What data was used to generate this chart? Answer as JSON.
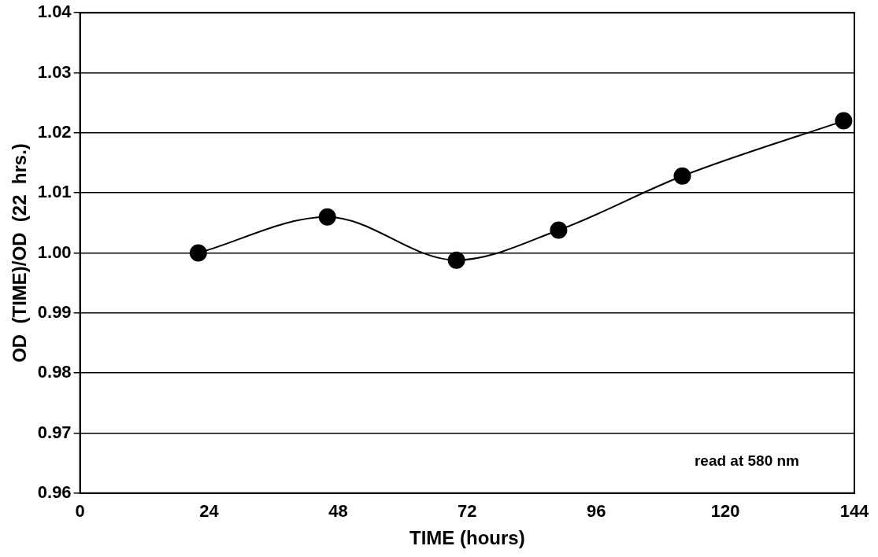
{
  "chart_data": {
    "type": "line",
    "xlabel": "TIME (hours)",
    "ylabel": "OD  (TIME)/OD  (22  hrs.)",
    "x": [
      22,
      46,
      70,
      89,
      112,
      142
    ],
    "series": [
      {
        "color": "#000000",
        "values": [
          1.0,
          1.006,
          0.9988,
          1.0038,
          1.0128,
          1.022
        ]
      }
    ],
    "xlim": [
      0,
      144
    ],
    "xticks": [
      0,
      24,
      48,
      72,
      96,
      120,
      144
    ],
    "ylim": [
      0.96,
      1.04
    ],
    "yticks": [
      {
        "value": 0.96,
        "label": "0.96"
      },
      {
        "value": 0.97,
        "label": "0.97"
      },
      {
        "value": 0.98,
        "label": "0.98"
      },
      {
        "value": 0.99,
        "label": "0.99"
      },
      {
        "value": 1,
        "label": "1.00"
      },
      {
        "value": 1.01,
        "label": "1.01"
      },
      {
        "value": 1.02,
        "label": "1.02"
      },
      {
        "value": 1.03,
        "label": "1.03"
      },
      {
        "value": 1.04,
        "label": "1.04"
      }
    ],
    "grid": "y",
    "marker": "circle",
    "line_style": "solid",
    "legend": false,
    "annotations": [
      "read at 580 nm"
    ]
  }
}
